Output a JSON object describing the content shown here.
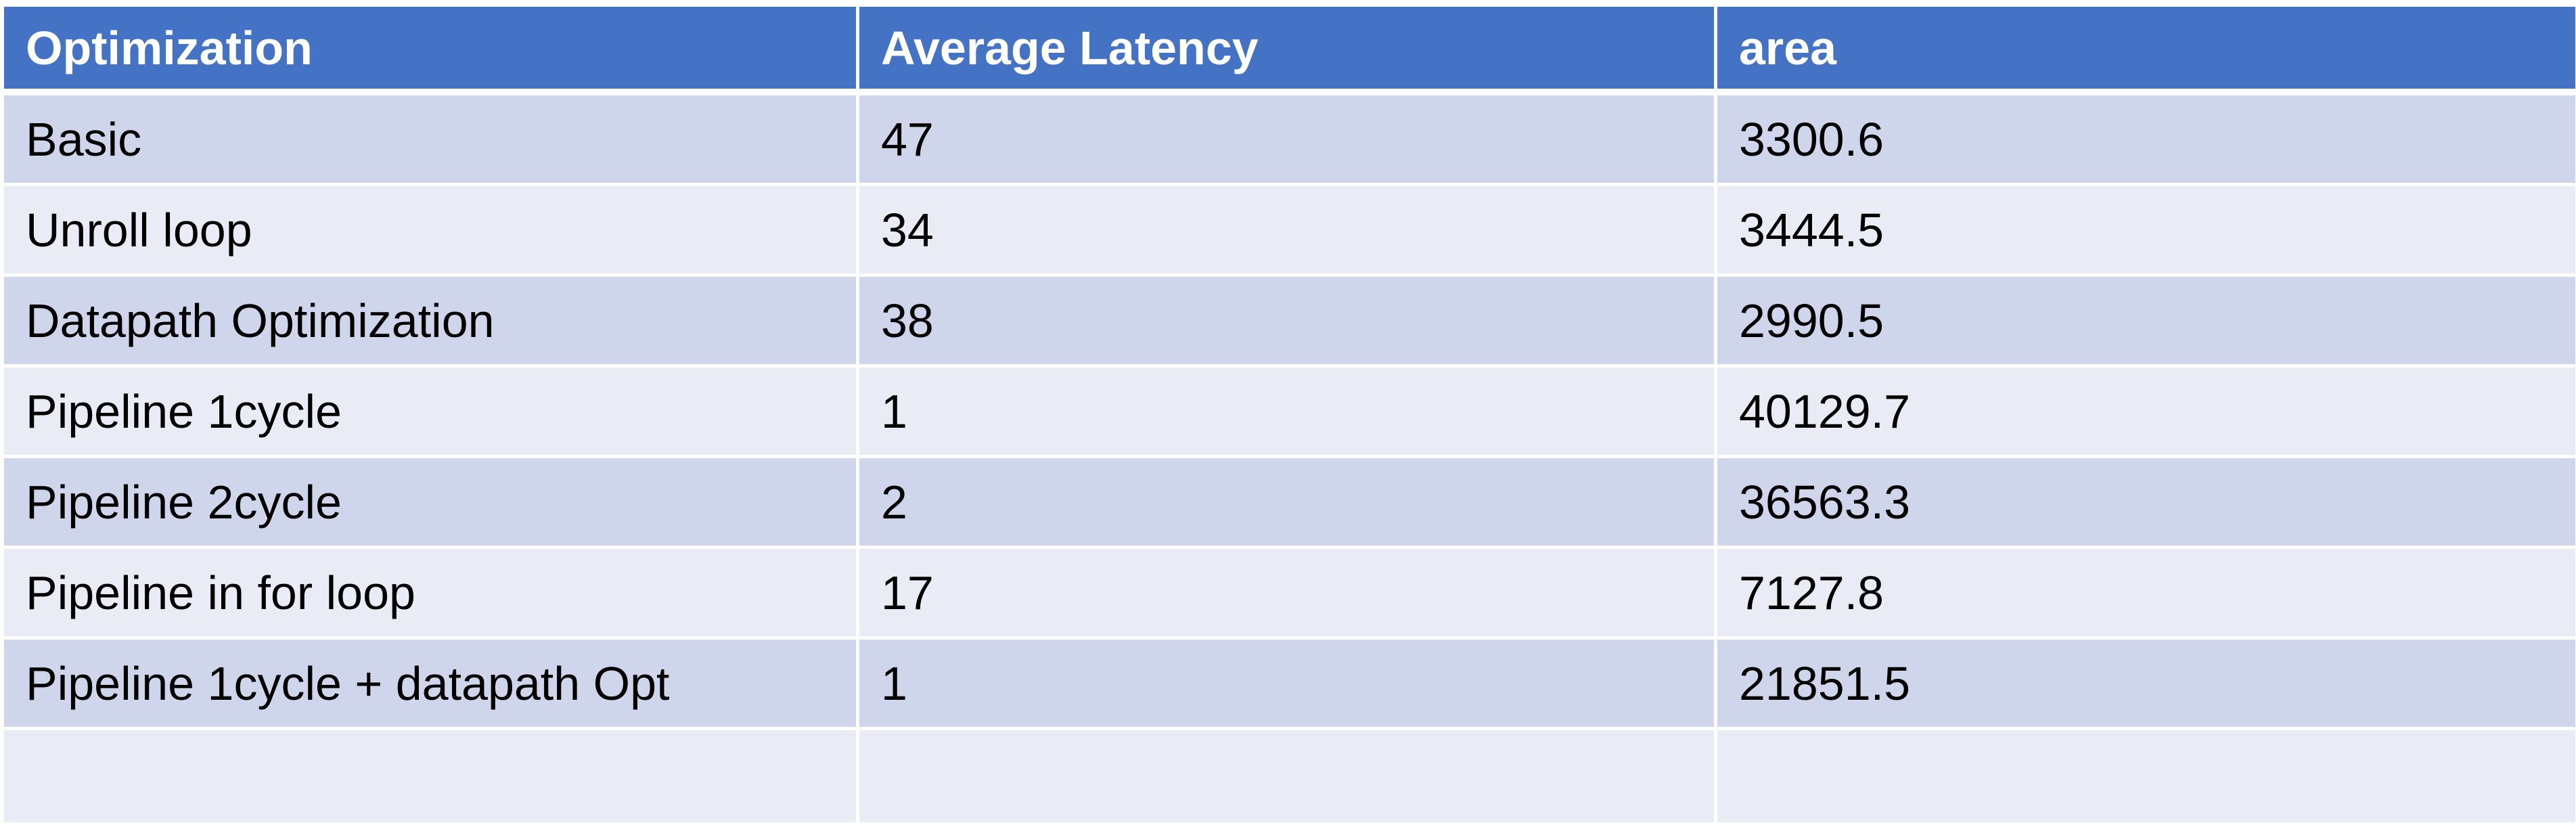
{
  "table": {
    "headers": [
      "Optimization",
      "Average Latency",
      "area"
    ],
    "rows": [
      [
        "Basic",
        "47",
        "3300.6"
      ],
      [
        "Unroll loop",
        "34",
        "3444.5"
      ],
      [
        "Datapath Optimization",
        "38",
        "2990.5"
      ],
      [
        "Pipeline 1cycle",
        "1",
        "40129.7"
      ],
      [
        "Pipeline 2cycle",
        "2",
        "36563.3"
      ],
      [
        "Pipeline in for loop",
        "17",
        "7127.8"
      ],
      [
        "Pipeline 1cycle + datapath Opt",
        "1",
        "21851.5"
      ],
      [
        "",
        "",
        ""
      ]
    ],
    "colors": {
      "header_bg": "#4472c4",
      "header_text": "#ffffff",
      "row_band_dark": "#cfd5ea",
      "row_band_light": "#e9ebf5"
    }
  }
}
